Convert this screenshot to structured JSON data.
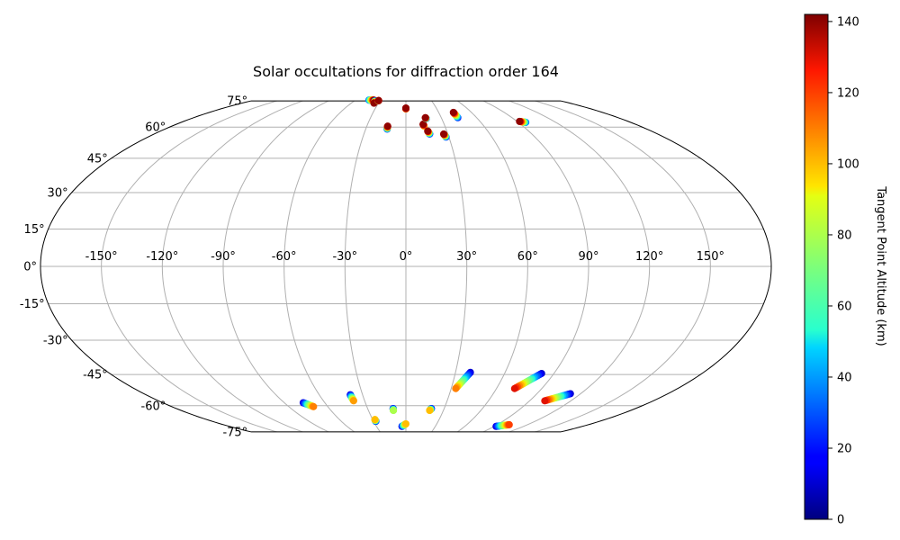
{
  "chart_data": {
    "type": "scatter",
    "projection": "mollweide",
    "title": "Solar occultations for diffraction order 164",
    "x_ticks": [
      "-150°",
      "-120°",
      "-90°",
      "-60°",
      "-30°",
      "0°",
      "30°",
      "60°",
      "90°",
      "120°",
      "150°"
    ],
    "x_tick_values": [
      -150,
      -120,
      -90,
      -60,
      -30,
      0,
      30,
      60,
      90,
      120,
      150
    ],
    "y_ticks": [
      "-75°",
      "-60°",
      "-45°",
      "-30°",
      "-15°",
      "0°",
      "15°",
      "30°",
      "45°",
      "60°",
      "75°"
    ],
    "y_tick_values": [
      -75,
      -60,
      -45,
      -30,
      -15,
      0,
      15,
      30,
      45,
      60,
      75
    ],
    "xlim": [
      -180,
      180
    ],
    "ylim": [
      -90,
      90
    ],
    "grid": true,
    "colorbar": {
      "label": "Tangent Point Altitude (km)",
      "colormap": "jet",
      "range": [
        0,
        142
      ],
      "ticks": [
        "0",
        "20",
        "40",
        "60",
        "80",
        "100",
        "120",
        "140"
      ],
      "tick_values": [
        0,
        20,
        40,
        60,
        80,
        100,
        120,
        140
      ]
    },
    "occultations": [
      {
        "lon_start": -44,
        "lat_start": 75.5,
        "lon_end": -38,
        "lat_end": 75.5,
        "alt_start": 30,
        "alt_end": 140
      },
      {
        "lon_start": -36,
        "lat_start": 75,
        "lon_end": -35,
        "lat_end": 73.5,
        "alt_start": 20,
        "alt_end": 140
      },
      {
        "lon_start": -32,
        "lat_start": 75,
        "lon_end": -32,
        "lat_end": 75.2,
        "alt_start": 50,
        "alt_end": 140
      },
      {
        "lon_start": -14,
        "lat_start": 59,
        "lon_end": -14,
        "lat_end": 60.5,
        "alt_start": 20,
        "alt_end": 140
      },
      {
        "lon_start": 0,
        "lat_start": 70,
        "lon_end": 0,
        "lat_end": 70.5,
        "alt_start": 100,
        "alt_end": 140
      },
      {
        "lon_start": 14,
        "lat_start": 60.5,
        "lon_end": 13.5,
        "lat_end": 61.5,
        "alt_start": 90,
        "alt_end": 140
      },
      {
        "lon_start": 17,
        "lat_start": 64.5,
        "lon_end": 16.5,
        "lat_end": 65,
        "alt_start": 20,
        "alt_end": 140
      },
      {
        "lon_start": 17,
        "lat_start": 56.5,
        "lon_end": 16,
        "lat_end": 58,
        "alt_start": 20,
        "alt_end": 140
      },
      {
        "lon_start": 28,
        "lat_start": 55,
        "lon_end": 27,
        "lat_end": 56.5,
        "alt_start": 20,
        "alt_end": 140
      },
      {
        "lon_start": 44,
        "lat_start": 65,
        "lon_end": 43.5,
        "lat_end": 68,
        "alt_start": 20,
        "alt_end": 140
      },
      {
        "lon_start": 96,
        "lat_start": 62.5,
        "lon_end": 92,
        "lat_end": 63,
        "alt_start": 30,
        "alt_end": 140
      },
      {
        "lon_start": -76,
        "lat_start": -58.5,
        "lon_end": -71,
        "lat_end": -60.5,
        "alt_start": 10,
        "alt_end": 110
      },
      {
        "lon_start": -38.5,
        "lat_start": -54.5,
        "lon_end": -38,
        "lat_end": -57.5,
        "alt_start": 10,
        "alt_end": 105
      },
      {
        "lon_start": -28,
        "lat_start": -68.5,
        "lon_end": -28,
        "lat_end": -67.5,
        "alt_start": 10,
        "alt_end": 100
      },
      {
        "lon_start": -10,
        "lat_start": -61.5,
        "lon_end": -10,
        "lat_end": -62.5,
        "alt_start": 10,
        "alt_end": 80
      },
      {
        "lon_start": -4,
        "lat_start": -71.5,
        "lon_end": 0,
        "lat_end": -70,
        "alt_start": 10,
        "alt_end": 100
      },
      {
        "lon_start": 20,
        "lat_start": -61.5,
        "lon_end": 19,
        "lat_end": -62.5,
        "alt_start": 10,
        "alt_end": 100
      },
      {
        "lon_start": 39,
        "lat_start": -44,
        "lon_end": 33,
        "lat_end": -51.5,
        "alt_start": 10,
        "alt_end": 110
      },
      {
        "lon_start": 82.5,
        "lat_start": -44.5,
        "lon_end": 72,
        "lat_end": -51.5,
        "alt_start": 10,
        "alt_end": 130
      },
      {
        "lon_start": 113,
        "lat_start": -54,
        "lon_end": 101,
        "lat_end": -57.5,
        "alt_start": 10,
        "alt_end": 130
      },
      {
        "lon_start": 92,
        "lat_start": -71.5,
        "lon_end": 102,
        "lat_end": -70.5,
        "alt_start": 10,
        "alt_end": 120
      }
    ]
  }
}
